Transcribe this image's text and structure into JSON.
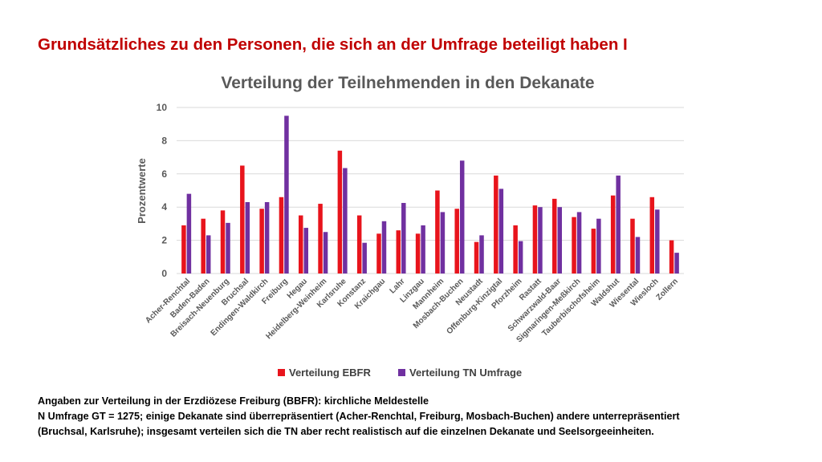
{
  "slide": {
    "title": "Grundsätzliches zu den Personen, die sich an der Umfrage beteiligt haben I"
  },
  "notes": {
    "line1": "Angaben zur Verteilung in der Erzdiözese Freiburg (BBFR): kirchliche Meldestelle",
    "line2": "N Umfrage GT = 1275; einige Dekanate sind überrepräsentiert (Acher-Renchtal, Freiburg, Mosbach-Buchen) andere unterrepräsentiert",
    "line3": "(Bruchsal, Karlsruhe); insgesamt verteilen sich die TN aber recht realistisch auf die einzelnen Dekanate und Seelsorgeeinheiten."
  },
  "chart_data": {
    "type": "bar",
    "title": "Verteilung der Teilnehmenden in den Dekanate",
    "xlabel": "",
    "ylabel": "Prozentwerte",
    "ylim": [
      0,
      10
    ],
    "yticks": [
      0,
      2,
      4,
      6,
      8,
      10
    ],
    "grid": true,
    "legend_position": "bottom",
    "categories": [
      "Acher-Renchtal",
      "Baden-Baden",
      "Breisach-Neuenburg",
      "Bruchsal",
      "Endingen-Waldkirch",
      "Freiburg",
      "Hegau",
      "Heidelberg-Weinheim",
      "Karlsruhe",
      "Konstanz",
      "Kraichgau",
      "Lahr",
      "Linzgau",
      "Mannheim",
      "Mosbach-Buchen",
      "Neustadt",
      "Offenburg-Kinzigtal",
      "Pforzheim",
      "Rastatt",
      "Schwarzwald-Baar",
      "Sigmaringen-Meßkirch",
      "Tauberbischofsheim",
      "Waldshut",
      "Wiesental",
      "Wiesloch",
      "Zollern"
    ],
    "series": [
      {
        "name": "Verteilung EBFR",
        "color": "#e8141c",
        "values": [
          2.9,
          3.3,
          3.8,
          6.5,
          3.9,
          4.6,
          3.5,
          4.2,
          7.4,
          3.5,
          2.4,
          2.6,
          2.4,
          5.0,
          3.9,
          1.9,
          5.9,
          2.9,
          4.1,
          4.5,
          3.4,
          2.7,
          4.7,
          3.3,
          4.6,
          2.0
        ]
      },
      {
        "name": "Verteilung TN Umfrage",
        "color": "#7030a0",
        "values": [
          4.8,
          2.3,
          3.05,
          4.3,
          4.3,
          9.5,
          2.75,
          2.5,
          6.35,
          1.85,
          3.15,
          4.25,
          2.9,
          3.7,
          6.8,
          2.3,
          5.1,
          1.95,
          4.0,
          4.0,
          3.7,
          3.3,
          5.9,
          2.2,
          3.85,
          1.25
        ]
      }
    ]
  }
}
